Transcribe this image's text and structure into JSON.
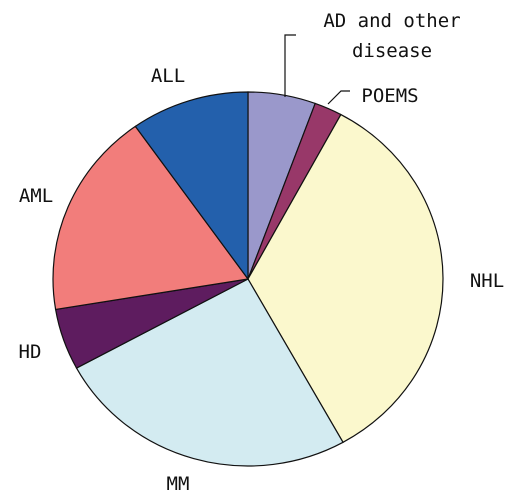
{
  "chart_data": {
    "type": "pie",
    "categories": [
      "AD and other disease",
      "POEMS",
      "NHL",
      "MM",
      "HD",
      "AML",
      "ALL"
    ],
    "values": [
      5.6,
      2.3,
      34,
      25.2,
      5.3,
      17.8,
      9.8
    ],
    "colors": [
      "#9a98cb",
      "#983869",
      "#fbf8cd",
      "#d3ebf1",
      "#5e1c5f",
      "#f27d7b",
      "#2360ac"
    ]
  }
}
